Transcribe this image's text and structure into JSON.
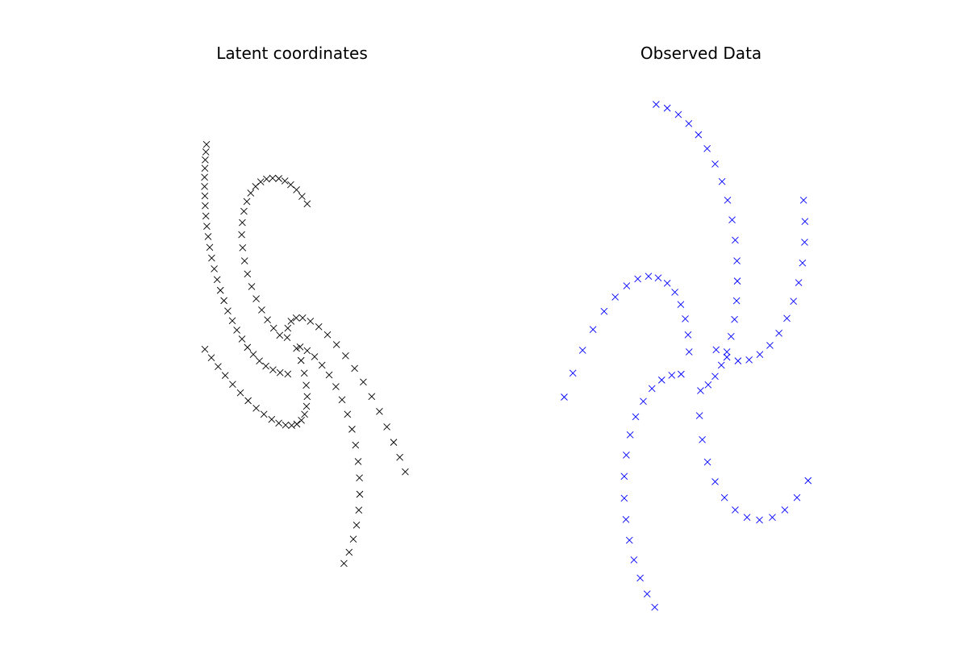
{
  "chart_data": [
    {
      "type": "scatter",
      "title": "Latent coordinates",
      "marker": "x",
      "color": "#000000",
      "axes_visible": false,
      "xlim": [
        -5.0,
        5.0
      ],
      "ylim": [
        -5.0,
        5.0
      ],
      "series": [
        {
          "x": [
            -2.6,
            -2.62,
            -2.64,
            -2.65,
            -2.66,
            -2.66,
            -2.65,
            -2.64,
            -2.62,
            -2.59,
            -2.55,
            -2.5,
            -2.44,
            -2.36,
            -2.27,
            -2.17,
            -2.06,
            -1.94,
            -1.8,
            -1.66,
            -1.5,
            -1.33,
            -1.15,
            -0.96,
            -0.76,
            -0.54,
            -0.32,
            -0.08
          ],
          "y": [
            3.98,
            3.82,
            3.65,
            3.47,
            3.28,
            3.08,
            2.88,
            2.67,
            2.45,
            2.23,
            2.01,
            1.78,
            1.55,
            1.32,
            1.09,
            0.86,
            0.64,
            0.42,
            0.21,
            0.01,
            -0.18,
            -0.36,
            -0.51,
            -0.65,
            -0.76,
            -0.84,
            -0.9,
            -0.93
          ]
        },
        {
          "x": [
            0.52,
            0.36,
            0.19,
            0.01,
            -0.17,
            -0.36,
            -0.55,
            -0.74,
            -0.92,
            -1.08,
            -1.23,
            -1.35,
            -1.44,
            -1.49,
            -1.51,
            -1.48,
            -1.42,
            -1.33,
            -1.2,
            -1.06,
            -0.89,
            -0.71,
            -0.52,
            -0.33
          ],
          "y": [
            2.71,
            2.87,
            3.01,
            3.12,
            3.2,
            3.25,
            3.26,
            3.24,
            3.18,
            3.08,
            2.94,
            2.76,
            2.55,
            2.31,
            2.05,
            1.77,
            1.49,
            1.21,
            0.94,
            0.68,
            0.44,
            0.23,
            0.05,
            -0.1
          ]
        },
        {
          "x": [
            -0.1,
            -0.08,
            0.02,
            0.18,
            0.38,
            0.62,
            0.88,
            1.15,
            1.43,
            1.71,
            1.99,
            2.26,
            2.52,
            2.76,
            2.99,
            3.2,
            3.39,
            3.56
          ],
          "y": [
            -0.15,
            0.05,
            0.2,
            0.27,
            0.27,
            0.2,
            0.08,
            -0.09,
            -0.3,
            -0.54,
            -0.81,
            -1.1,
            -1.41,
            -1.73,
            -2.06,
            -2.39,
            -2.71,
            -3.02
          ]
        },
        {
          "x": [
            -2.65,
            -2.45,
            -2.24,
            -2.02,
            -1.79,
            -1.55,
            -1.31,
            -1.06,
            -0.82,
            -0.58,
            -0.36,
            -0.15,
            0.04,
            0.2,
            0.34,
            0.44,
            0.5,
            0.52,
            0.49,
            0.43,
            0.33,
            0.19
          ],
          "y": [
            -0.4,
            -0.58,
            -0.77,
            -0.96,
            -1.15,
            -1.33,
            -1.5,
            -1.66,
            -1.79,
            -1.9,
            -1.98,
            -2.02,
            -2.03,
            -2.0,
            -1.92,
            -1.79,
            -1.62,
            -1.41,
            -1.17,
            -0.91,
            -0.64,
            -0.38
          ]
        },
        {
          "x": [
            0.3,
            0.52,
            0.75,
            0.98,
            1.2,
            1.41,
            1.6,
            1.77,
            1.91,
            2.02,
            2.1,
            2.14,
            2.15,
            2.12,
            2.05,
            1.95,
            1.82,
            1.66
          ],
          "y": [
            -0.35,
            -0.43,
            -0.56,
            -0.74,
            -0.95,
            -1.2,
            -1.48,
            -1.79,
            -2.11,
            -2.45,
            -2.8,
            -3.15,
            -3.5,
            -3.84,
            -4.16,
            -4.46,
            -4.74,
            -4.98
          ]
        }
      ]
    },
    {
      "type": "scatter",
      "title": "Observed Data",
      "marker": "x",
      "color": "#0000ff",
      "axes_visible": false,
      "xlim": [
        -5.0,
        5.0
      ],
      "ylim": [
        -5.0,
        5.0
      ],
      "series": [
        {
          "x": [
            -1.2,
            -0.88,
            -0.56,
            -0.26,
            0.02,
            0.27,
            0.5,
            0.7,
            0.86,
            0.99,
            1.08,
            1.13,
            1.14,
            1.12,
            1.06,
            0.96,
            0.84,
            0.68,
            0.5,
            0.3,
            0.08
          ],
          "y": [
            4.25,
            4.18,
            4.06,
            3.89,
            3.68,
            3.42,
            3.13,
            2.8,
            2.45,
            2.08,
            1.7,
            1.31,
            0.93,
            0.56,
            0.21,
            -0.11,
            -0.4,
            -0.65,
            -0.86,
            -1.02,
            -1.13
          ]
        },
        {
          "x": [
            -3.85,
            -3.6,
            -3.32,
            -3.02,
            -2.7,
            -2.38,
            -2.05,
            -1.73,
            -1.42,
            -1.14,
            -0.88,
            -0.66,
            -0.49,
            -0.36,
            -0.28,
            -0.25
          ],
          "y": [
            -1.25,
            -0.8,
            -0.37,
            0.02,
            0.36,
            0.63,
            0.84,
            0.97,
            1.02,
            0.99,
            0.89,
            0.72,
            0.49,
            0.22,
            -0.08,
            -0.4
          ]
        },
        {
          "x": [
            -0.48,
            -0.75,
            -1.04,
            -1.32,
            -1.57,
            -1.79,
            -1.95,
            -2.06,
            -2.12,
            -2.12,
            -2.07,
            -1.97,
            -1.84,
            -1.66,
            -1.46,
            -1.24
          ],
          "y": [
            -0.82,
            -0.84,
            -0.93,
            -1.09,
            -1.33,
            -1.62,
            -1.96,
            -2.34,
            -2.74,
            -3.15,
            -3.55,
            -3.94,
            -4.31,
            -4.65,
            -4.95,
            -5.2
          ]
        },
        {
          "x": [
            0.05,
            0.13,
            0.28,
            0.5,
            0.77,
            1.08,
            1.42,
            1.78,
            2.15,
            2.51,
            2.86,
            3.18
          ],
          "y": [
            -1.6,
            -2.05,
            -2.47,
            -2.84,
            -3.14,
            -3.37,
            -3.51,
            -3.56,
            -3.51,
            -3.37,
            -3.14,
            -2.82
          ]
        },
        {
          "x": [
            3.05,
            3.09,
            3.08,
            3.02,
            2.91,
            2.76,
            2.57,
            2.34,
            2.08,
            1.79,
            1.48,
            1.16,
            0.84,
            0.53
          ],
          "y": [
            2.45,
            2.05,
            1.66,
            1.27,
            0.9,
            0.55,
            0.23,
            -0.05,
            -0.28,
            -0.45,
            -0.55,
            -0.57,
            -0.5,
            -0.36
          ]
        }
      ]
    }
  ]
}
